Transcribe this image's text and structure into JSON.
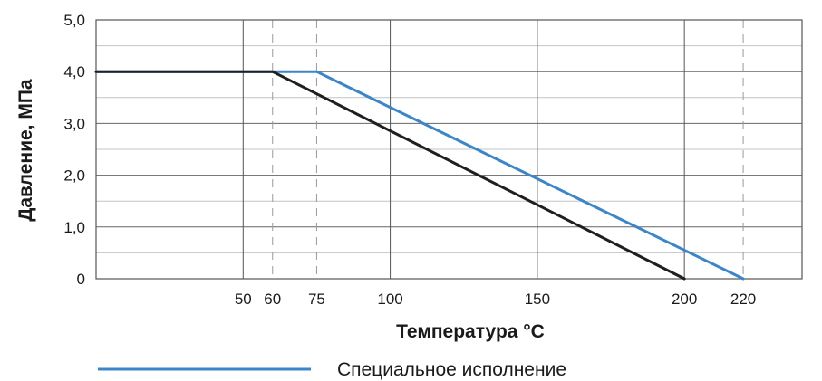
{
  "chart_data": {
    "type": "line",
    "ylabel": "Давление, МПа",
    "xlabel": "Температура °C",
    "xlim": [
      0,
      240
    ],
    "ylim": [
      0,
      5
    ],
    "x_ticks": [
      {
        "value": 50,
        "label": "50",
        "solid": true
      },
      {
        "value": 60,
        "label": "60",
        "solid": false
      },
      {
        "value": 75,
        "label": "75",
        "solid": false
      },
      {
        "value": 100,
        "label": "100",
        "solid": true
      },
      {
        "value": 150,
        "label": "150",
        "solid": true
      },
      {
        "value": 200,
        "label": "200",
        "solid": true
      },
      {
        "value": 220,
        "label": "220",
        "solid": false
      }
    ],
    "y_ticks": [
      {
        "value": 0,
        "label": "0"
      },
      {
        "value": 1,
        "label": "1,0"
      },
      {
        "value": 2,
        "label": "2,0"
      },
      {
        "value": 3,
        "label": "3,0"
      },
      {
        "value": 4,
        "label": "4,0"
      },
      {
        "value": 5,
        "label": "5,0"
      }
    ],
    "y_minor_step": 0.5,
    "grid": true,
    "legend_position": "bottom-left",
    "series": [
      {
        "color": "#1f1f1f",
        "x": [
          0,
          60,
          200
        ],
        "y": [
          4.0,
          4.0,
          0.0
        ]
      },
      {
        "name": "Специальное исполнение",
        "color": "#3b86c8",
        "x": [
          0,
          75,
          220
        ],
        "y": [
          4.0,
          4.0,
          0.0
        ]
      }
    ]
  }
}
